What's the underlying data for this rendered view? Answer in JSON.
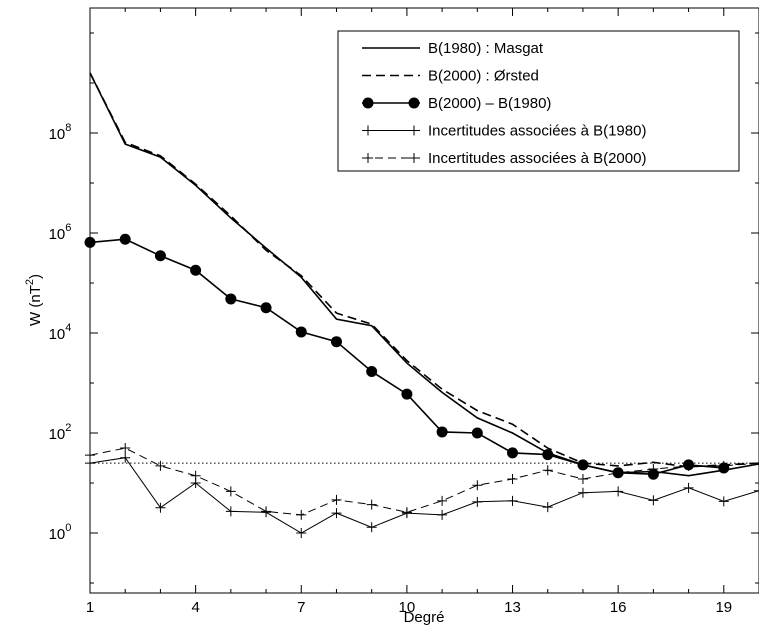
{
  "chart_data": {
    "type": "line",
    "xlabel": "Degré",
    "ylabel_base": "W (nT",
    "ylabel_sup": "2",
    "ylabel_close": ")",
    "y_scale": "log",
    "xlim": [
      1,
      20
    ],
    "ylim_exponent": [
      -1.2,
      10.5
    ],
    "x_ticks": [
      1,
      4,
      7,
      10,
      13,
      16,
      19
    ],
    "x_tick_labels": [
      "1",
      "4",
      "7",
      "10",
      "13",
      "16",
      "19"
    ],
    "y_tick_exponents": [
      0,
      2,
      4,
      6,
      8
    ],
    "y_tick_labels": [
      {
        "base": "10",
        "sup": "0"
      },
      {
        "base": "10",
        "sup": "2"
      },
      {
        "base": "10",
        "sup": "4"
      },
      {
        "base": "10",
        "sup": "6"
      },
      {
        "base": "10",
        "sup": "8"
      }
    ],
    "legend_position": "top-right",
    "reference_line": {
      "y": 25,
      "style": "dotted"
    },
    "series": [
      {
        "name": "B(1980) : Masgat",
        "style": "solid",
        "marker": "none",
        "x": [
          1,
          2,
          3,
          4,
          5,
          6,
          7,
          8,
          9,
          10,
          11,
          12,
          13,
          14,
          15,
          16,
          17,
          18,
          19,
          20
        ],
        "y": [
          1600000000.0,
          60000000.0,
          33000000.0,
          9000000.0,
          2000000.0,
          500000.0,
          130000.0,
          19000.0,
          14000.0,
          2500.0,
          650.0,
          200.0,
          100.0,
          40.0,
          23.0,
          16.0,
          17.0,
          14.0,
          18.0,
          24.0
        ]
      },
      {
        "name": "B(2000) : Ørsted",
        "style": "dashed",
        "marker": "none",
        "x": [
          1,
          2,
          3,
          4,
          5,
          6,
          7,
          8,
          9,
          10,
          11,
          12,
          13,
          14,
          15,
          16,
          17,
          18,
          19,
          20
        ],
        "y": [
          1600000000.0,
          65000000.0,
          35000000.0,
          9500000.0,
          2200000.0,
          450000.0,
          140000.0,
          25000.0,
          15000.0,
          2800.0,
          750.0,
          280.0,
          150.0,
          50.0,
          25.0,
          22.0,
          26.0,
          21.0,
          23.0,
          25.0
        ]
      },
      {
        "name": "B(2000) – B(1980)",
        "style": "solid",
        "marker": "circle",
        "x": [
          1,
          2,
          3,
          4,
          5,
          6,
          7,
          8,
          9,
          10,
          11,
          12,
          13,
          14,
          15,
          16,
          17,
          18,
          19
        ],
        "y": [
          650000.0,
          750000.0,
          350000.0,
          180000.0,
          48000.0,
          32000.0,
          10500.0,
          6700.0,
          1700.0,
          600.0,
          105.0,
          100.0,
          40.0,
          37.0,
          23.0,
          16.0,
          15.0,
          23.0,
          20.0
        ]
      },
      {
        "name": "Incertitudes associées à B(1980)",
        "style": "solid-thin",
        "marker": "plus",
        "x": [
          1,
          2,
          3,
          4,
          5,
          6,
          7,
          8,
          9,
          10,
          11,
          12,
          13,
          14,
          15,
          16,
          17,
          18,
          19,
          20
        ],
        "y": [
          25,
          32,
          3.2,
          10,
          2.7,
          2.6,
          1.0,
          2.5,
          1.3,
          2.5,
          2.3,
          4.2,
          4.4,
          3.3,
          6.4,
          6.8,
          4.5,
          8.0,
          4.3,
          7.0
        ]
      },
      {
        "name": "Incertitudes associées à B(2000)",
        "style": "dashed-thin",
        "marker": "plus",
        "x": [
          1,
          2,
          3,
          4,
          5,
          6,
          7,
          8,
          9,
          10,
          11,
          12,
          13,
          14,
          15,
          16,
          17,
          18,
          19,
          20
        ],
        "y": [
          36,
          50,
          22,
          14,
          6.8,
          2.7,
          2.3,
          4.6,
          3.7,
          2.6,
          4.4,
          9.0,
          12,
          18,
          12,
          16,
          19,
          22,
          22,
          25
        ]
      }
    ]
  }
}
